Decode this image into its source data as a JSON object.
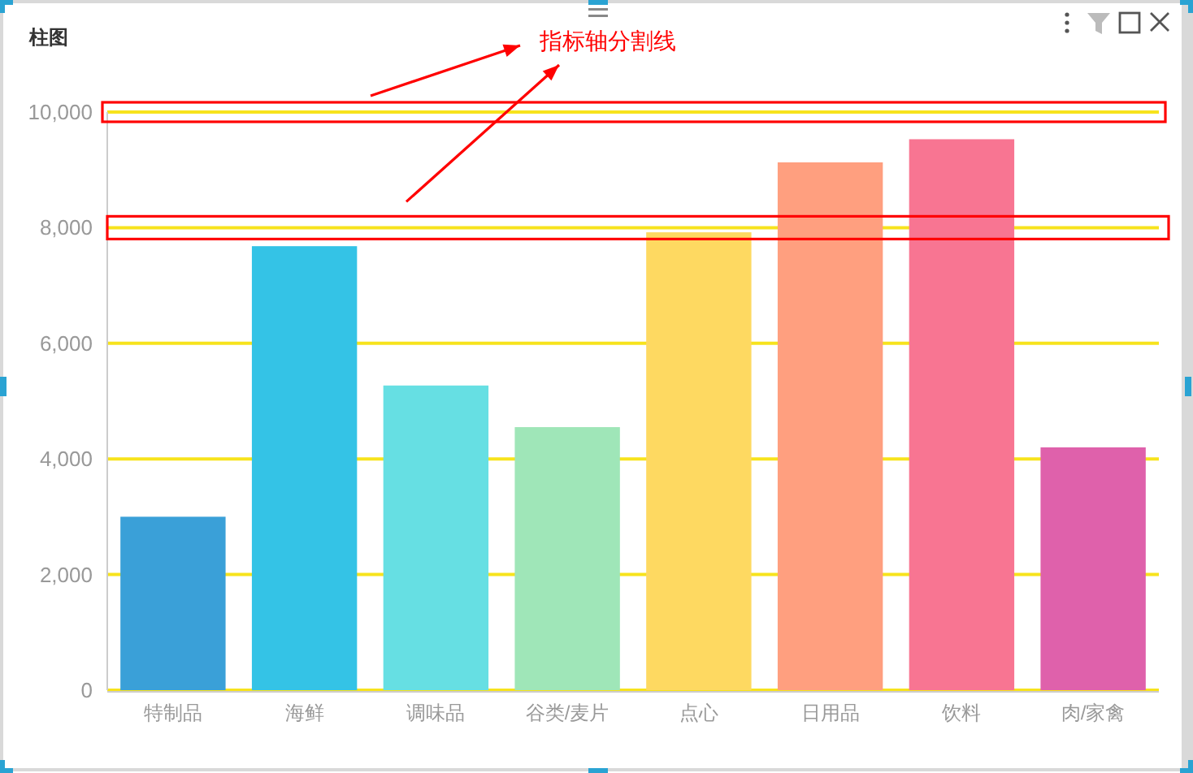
{
  "chart_data": {
    "type": "bar",
    "title": "柱图",
    "categories": [
      "特制品",
      "海鲜",
      "调味品",
      "谷类/麦片",
      "点心",
      "日用品",
      "饮料",
      "肉/家禽"
    ],
    "values": [
      3000,
      7680,
      5270,
      4550,
      7920,
      9130,
      9530,
      4200
    ],
    "colors": [
      "#3aa0d8",
      "#34c3e6",
      "#66dfe3",
      "#9fe6b8",
      "#fed961",
      "#ff9f7f",
      "#f87592",
      "#df61ab"
    ],
    "ylim": [
      0,
      10000
    ],
    "yticks": [
      0,
      {
        "value": 2000,
        "label": "2,000"
      },
      {
        "value": 4000,
        "label": "4,000"
      },
      {
        "value": 6000,
        "label": "6,000"
      },
      {
        "value": 8000,
        "label": "8,000"
      },
      {
        "value": 10000,
        "label": "10,000"
      }
    ],
    "grid": "y",
    "annotations": [
      "指标轴分割线"
    ]
  }
}
